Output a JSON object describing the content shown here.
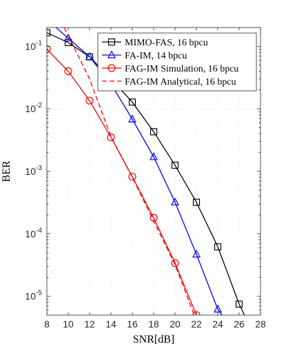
{
  "chart_data": {
    "type": "line",
    "xlabel": "SNR[dB]",
    "ylabel": "BER",
    "xlim": [
      8,
      28
    ],
    "ylim": [
      5e-06,
      0.2
    ],
    "yscale": "log",
    "xticks": [
      "8",
      "10",
      "12",
      "14",
      "16",
      "18",
      "20",
      "22",
      "24",
      "26",
      "28"
    ],
    "yticks": [
      {
        "base": "10",
        "exp": "-1",
        "value": 0.1
      },
      {
        "base": "10",
        "exp": "-2",
        "value": 0.01
      },
      {
        "base": "10",
        "exp": "-3",
        "value": 0.001
      },
      {
        "base": "10",
        "exp": "-4",
        "value": 0.0001
      },
      {
        "base": "10",
        "exp": "-5",
        "value": 1e-05
      }
    ],
    "grid": true,
    "legend_position": "top-right",
    "series": [
      {
        "name": "MIMO-FAS, 16 bpcu",
        "color": "#000000",
        "marker": "square",
        "dashed": false,
        "x": [
          8,
          10,
          12,
          14,
          16,
          18,
          20,
          22,
          24,
          26,
          26.5
        ],
        "y": [
          0.165,
          0.115,
          0.068,
          0.03,
          0.0128,
          0.0043,
          0.00125,
          0.00032,
          6.2e-05,
          7.5e-06,
          5e-06
        ],
        "markers_x": [
          8,
          10,
          12,
          14,
          16,
          18,
          20,
          22,
          24,
          26
        ]
      },
      {
        "name": "FA-IM, 14 bpcu",
        "color": "#0000ee",
        "marker": "triangle",
        "dashed": false,
        "x": [
          8,
          10,
          12,
          14,
          16,
          18,
          20,
          22,
          24,
          24.4
        ],
        "y": [
          0.27,
          0.135,
          0.068,
          0.025,
          0.0068,
          0.0017,
          0.00032,
          4.7e-05,
          6.2e-06,
          5e-06
        ],
        "markers_x": [
          10,
          12,
          14,
          16,
          18,
          20,
          22,
          24
        ]
      },
      {
        "name": "FAG-IM Simulation, 16 bpcu",
        "color": "#ee0000",
        "marker": "circle",
        "dashed": false,
        "x": [
          8,
          10,
          12,
          14,
          16,
          18,
          20,
          22
        ],
        "y": [
          0.09,
          0.04,
          0.0135,
          0.0035,
          0.00082,
          0.00018,
          3.4e-05,
          5e-06
        ],
        "markers_x": [
          8,
          10,
          12,
          14,
          16,
          18,
          20,
          22
        ]
      },
      {
        "name": "FAG-IM Analytical, 16 bpcu",
        "color": "#ee0000",
        "marker": "none",
        "dashed": true,
        "x": [
          9.6,
          10,
          12,
          14,
          16,
          18,
          20,
          21.8
        ],
        "y": [
          0.2,
          0.15,
          0.03,
          0.0036,
          0.0008,
          0.00016,
          3.2e-05,
          5e-06
        ],
        "markers_x": []
      }
    ]
  }
}
